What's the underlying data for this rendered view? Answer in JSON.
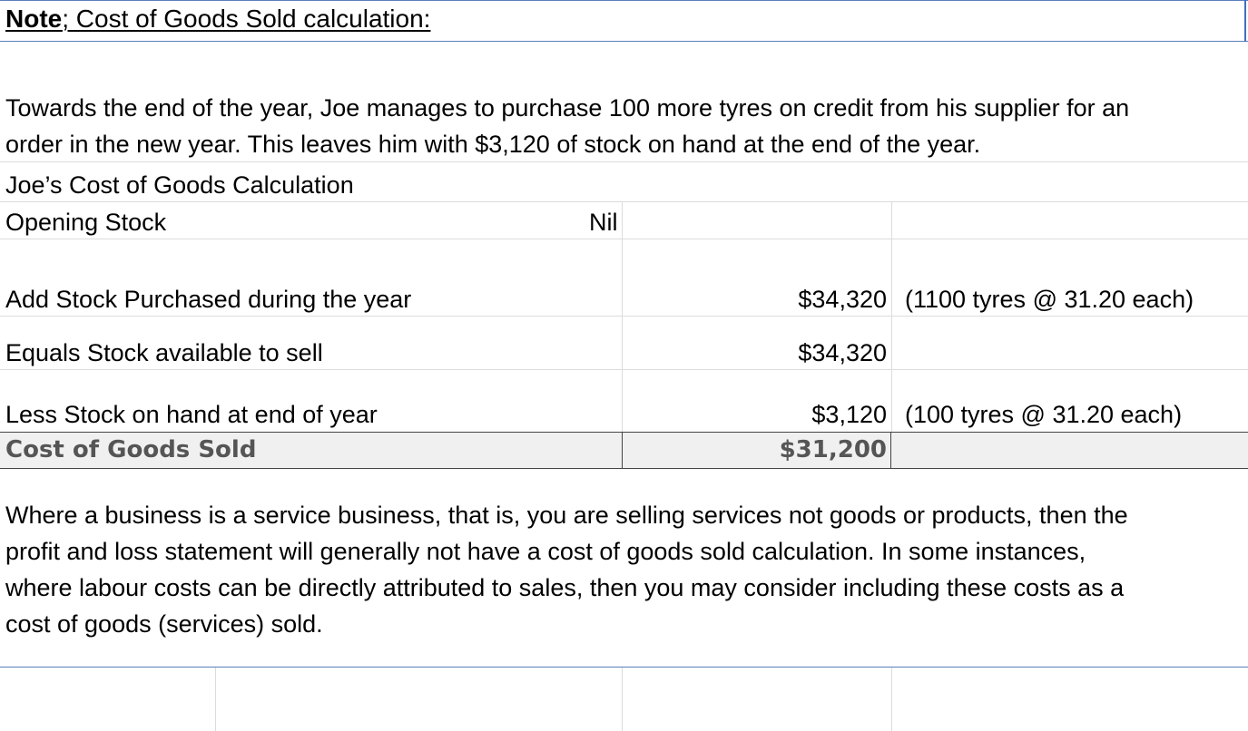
{
  "note": {
    "title_bold": "Note",
    "title_rest": "; Cost of Goods Sold calculation:"
  },
  "intro": {
    "line1": "Towards the end of the year, Joe manages to purchase 100 more tyres on credit from his supplier for an",
    "line2": "order in the new year.  This leaves him with $3,120 of stock on hand at the end of the year."
  },
  "calc": {
    "heading": "Joe’s Cost of Goods Calculation",
    "rows": [
      {
        "label": "Opening Stock",
        "value": "Nil",
        "note": ""
      },
      {
        "label": "Add Stock Purchased during the year",
        "value": "$34,320",
        "note": "(1100 tyres @ 31.20 each)"
      },
      {
        "label": "Equals Stock available to sell",
        "value": "$34,320",
        "note": ""
      },
      {
        "label": "Less Stock on hand at end of year",
        "value": "$3,120",
        "note": "(100 tyres @ 31.20 each)"
      }
    ],
    "total": {
      "label": "Cost of Goods Sold",
      "value": "$31,200"
    }
  },
  "service_note": {
    "line1": "Where a business is a service business, that is, you are selling services not goods or products, then the",
    "line2": "profit and loss statement will generally not have a cost of goods sold calculation.  In some instances,",
    "line3": "where labour costs can be directly attributed to sales, then you may consider including these costs as a",
    "line4": "cost of goods (services) sold."
  },
  "colors": {
    "total_row_bg": "#f0f0f0",
    "total_text": "#555555",
    "gridline": "#dcdcdc",
    "selection_border": "#3f6fc0"
  }
}
